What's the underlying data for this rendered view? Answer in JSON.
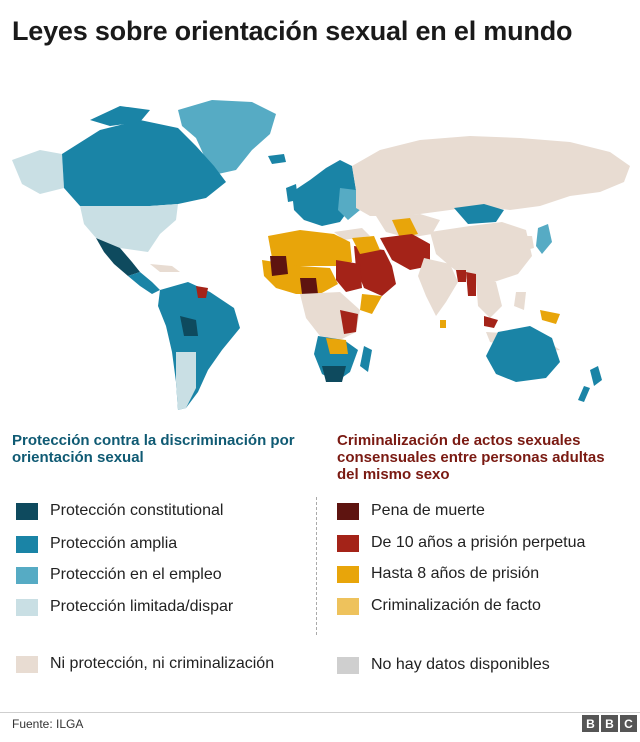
{
  "title": "Leyes sobre orientación sexual en el mundo",
  "legend_left": {
    "heading": "Protección contra la discriminación por orientación sexual",
    "items": [
      {
        "label": "Protección constitutional",
        "color": "#0e4a5e"
      },
      {
        "label": "Protección amplia",
        "color": "#1a84a6"
      },
      {
        "label": "Protección en el empleo",
        "color": "#56abc4"
      },
      {
        "label": "Protección limitada/dispar",
        "color": "#c9dfe4"
      }
    ]
  },
  "legend_right": {
    "heading": "Criminalización de actos sexuales consensuales entre personas adultas del mismo sexo",
    "items": [
      {
        "label": "Pena de muerte",
        "color": "#5e1410"
      },
      {
        "label": "De 10 años a prisión perpetua",
        "color": "#a42318"
      },
      {
        "label": "Hasta 8 años de prisión",
        "color": "#e8a50a"
      },
      {
        "label": "Criminalización de facto",
        "color": "#eec25c"
      }
    ]
  },
  "legend_bottom": [
    {
      "label": "Ni protección, ni criminalización",
      "color": "#e8dcd2"
    },
    {
      "label": "No hay datos disponibles",
      "color": "#cfcfcf"
    }
  ],
  "source": "Fuente: ILGA",
  "logo": [
    "B",
    "B",
    "C"
  ]
}
